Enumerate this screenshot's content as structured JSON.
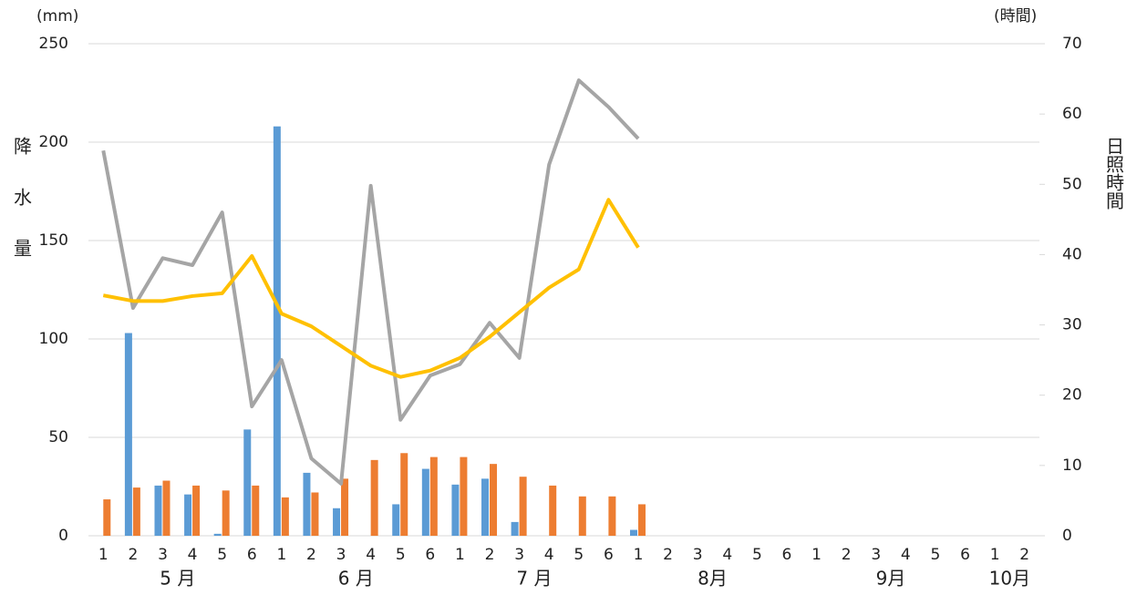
{
  "chart_data": {
    "type": "bar_line",
    "ylabel": "降水量",
    "y2label": "日照時間",
    "yunit": "(mm)",
    "y2unit": "(時間)",
    "categories": [
      "1",
      "2",
      "3",
      "4",
      "5",
      "6",
      "1",
      "2",
      "3",
      "4",
      "5",
      "6",
      "1",
      "2",
      "3",
      "4",
      "5",
      "6",
      "1",
      "2",
      "3",
      "4",
      "5",
      "6",
      "1",
      "2",
      "3",
      "4",
      "5",
      "6",
      "1",
      "2"
    ],
    "category_groups": [
      "5 月",
      "6 月",
      "7 月",
      "8月",
      "9月",
      "10月"
    ],
    "ylim": [
      0,
      250
    ],
    "yticks": [
      0,
      50,
      100,
      150,
      200,
      250
    ],
    "y2lim": [
      0,
      70
    ],
    "y2ticks": [
      0,
      10,
      20,
      30,
      40,
      50,
      60,
      70
    ],
    "grid": true,
    "series": [
      {
        "kind": "bar",
        "color": "#5b9bd5",
        "values": [
          null,
          103,
          25.5,
          21,
          1,
          54,
          208,
          32,
          14,
          null,
          16,
          34,
          26,
          29,
          7,
          null,
          null,
          null,
          3,
          null,
          null,
          null,
          null,
          null,
          null,
          null,
          null,
          null,
          null,
          null,
          null,
          null
        ]
      },
      {
        "kind": "bar",
        "color": "#ed7d31",
        "values": [
          18.5,
          24.5,
          28,
          25.5,
          23,
          25.5,
          19.5,
          22,
          29,
          38.5,
          42,
          40,
          40,
          36.5,
          30,
          25.5,
          20,
          20,
          16,
          null,
          null,
          null,
          null,
          null,
          null,
          null,
          null,
          null,
          null,
          null,
          null,
          null
        ]
      },
      {
        "kind": "line",
        "axis": "y2",
        "color": "#a5a5a5",
        "values": [
          54.8,
          32.4,
          39.5,
          38.5,
          46,
          18.4,
          25,
          11,
          7.4,
          49.8,
          16.5,
          22.8,
          24.4,
          30.3,
          25.3,
          52.8,
          64.8,
          61,
          56.5,
          null,
          null,
          null,
          null,
          null,
          null,
          null,
          null,
          null,
          null,
          null,
          null,
          null
        ]
      },
      {
        "kind": "line",
        "axis": "y2",
        "color": "#ffc000",
        "values": [
          34.2,
          33.4,
          33.4,
          34.1,
          34.5,
          39.8,
          31.6,
          29.8,
          27,
          24.2,
          22.6,
          23.5,
          25.3,
          28.3,
          31.8,
          35.3,
          37.9,
          47.8,
          41,
          null,
          null,
          null,
          null,
          null,
          null,
          null,
          null,
          null,
          null,
          null,
          null,
          null
        ]
      }
    ]
  }
}
